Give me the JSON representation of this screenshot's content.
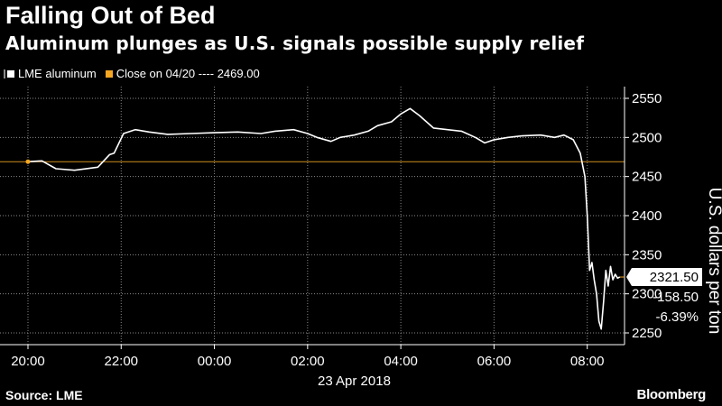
{
  "title": "Falling Out of Bed",
  "subtitle": "Aluminum plunges as U.S. signals possible supply relief",
  "legend": {
    "series_label": "LME aluminum",
    "close_label": "Close on 04/20 ---- 2469.00"
  },
  "source": "Source: LME",
  "brand": "Bloomberg",
  "colors": {
    "series": "#ffffff",
    "close": "#f5a623",
    "grid": "#8a8a8a"
  },
  "chart_data": {
    "type": "line",
    "title": "Falling Out of Bed",
    "subtitle": "Aluminum plunges as U.S. signals possible supply relief",
    "ylabel": "U.S. dollars per ton",
    "xlabel": "23 Apr 2018",
    "ylim": [
      2235,
      2565
    ],
    "xlim": [
      -0.6,
      12.8
    ],
    "x_units": "hours after 20:00 (22 Apr 2018)",
    "y_ticks": [
      2250,
      2300,
      2350,
      2400,
      2450,
      2500,
      2550
    ],
    "x_ticks": [
      {
        "x": 0,
        "label": "20:00"
      },
      {
        "x": 2,
        "label": "22:00"
      },
      {
        "x": 4,
        "label": "00:00"
      },
      {
        "x": 6,
        "label": "02:00"
      },
      {
        "x": 8,
        "label": "04:00"
      },
      {
        "x": 10,
        "label": "06:00"
      },
      {
        "x": 12,
        "label": "08:00"
      }
    ],
    "date_label": "23 Apr 2018",
    "grid": true,
    "legend_position": "top-left",
    "reference_line": {
      "name": "Close on 04/20",
      "value": 2469.0
    },
    "series": [
      {
        "name": "LME aluminum",
        "x": [
          0.0,
          0.3,
          0.6,
          1.0,
          1.5,
          1.75,
          1.85,
          2.05,
          2.3,
          2.6,
          3.0,
          3.5,
          4.0,
          4.5,
          5.0,
          5.3,
          5.7,
          6.0,
          6.2,
          6.5,
          6.7,
          7.0,
          7.3,
          7.5,
          7.8,
          8.0,
          8.2,
          8.4,
          8.7,
          9.0,
          9.3,
          9.6,
          9.8,
          10.0,
          10.3,
          10.6,
          11.0,
          11.3,
          11.5,
          11.7,
          11.85,
          11.95,
          12.0,
          12.05,
          12.1,
          12.15,
          12.2,
          12.25,
          12.3,
          12.35,
          12.4,
          12.45,
          12.5,
          12.55,
          12.6,
          12.65,
          12.7
        ],
        "values": [
          2469,
          2470,
          2460,
          2458,
          2462,
          2478,
          2480,
          2505,
          2510,
          2507,
          2504,
          2505,
          2506,
          2507,
          2505,
          2508,
          2510,
          2505,
          2500,
          2495,
          2500,
          2503,
          2508,
          2515,
          2520,
          2530,
          2537,
          2528,
          2512,
          2510,
          2508,
          2500,
          2493,
          2497,
          2500,
          2502,
          2503,
          2500,
          2503,
          2497,
          2480,
          2450,
          2400,
          2330,
          2340,
          2318,
          2300,
          2265,
          2255,
          2290,
          2330,
          2310,
          2335,
          2318,
          2325,
          2320,
          2321.5
        ]
      }
    ],
    "last_value": {
      "label": "2321.50",
      "change": "-158.50",
      "pct": "-6.39%"
    }
  }
}
